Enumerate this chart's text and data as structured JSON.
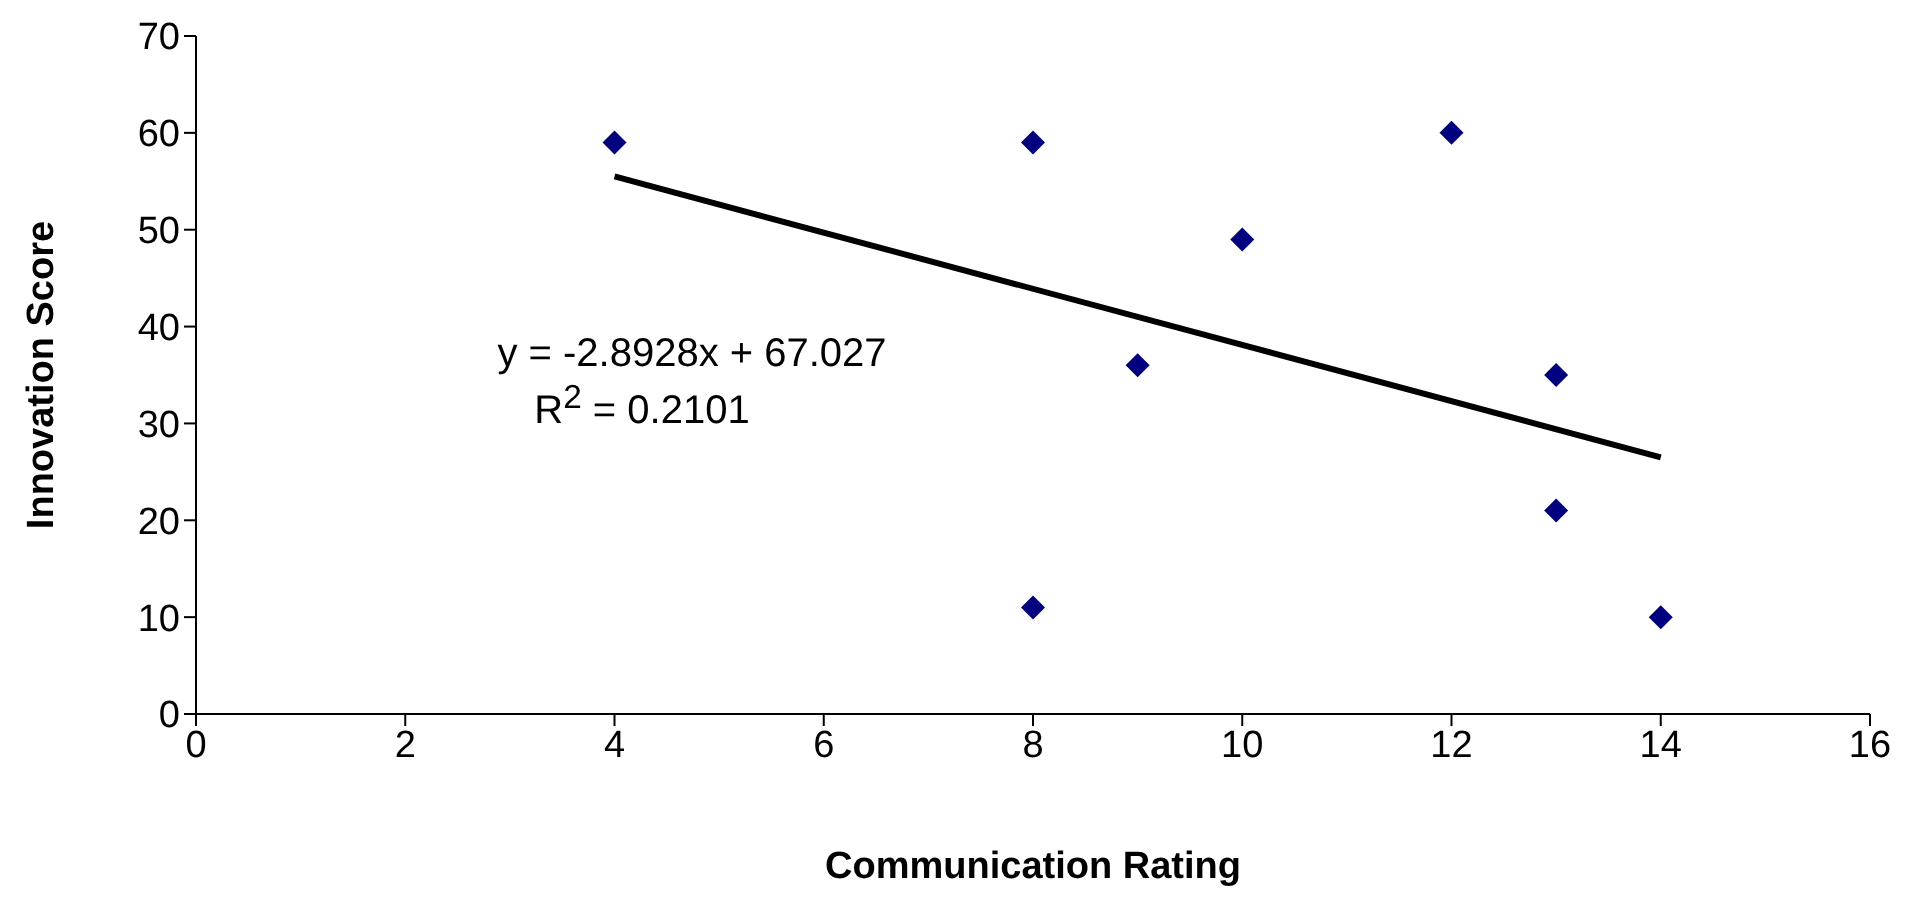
{
  "chart_data": {
    "type": "scatter",
    "xlabel": "Communication Rating",
    "ylabel": "Innovation Score",
    "xlim": [
      0,
      16
    ],
    "xticks": [
      0,
      2,
      4,
      6,
      8,
      10,
      12,
      14,
      16
    ],
    "ylim": [
      0,
      70
    ],
    "yticks": [
      0,
      10,
      20,
      30,
      40,
      50,
      60,
      70
    ],
    "grid": false,
    "legend": false,
    "marker": "diamond",
    "annotations": [
      "y = -2.8928x + 67.027",
      "R$^{2}$ = 0.2101"
    ],
    "series": [
      {
        "color": "#000080",
        "x": [
          4,
          8,
          8,
          9,
          10,
          12,
          13,
          13,
          14
        ],
        "values": [
          59,
          59,
          11,
          36,
          49,
          60,
          35,
          21,
          10
        ]
      },
      {
        "type": "line",
        "color": "#000000",
        "marker": "none",
        "line_style": "solid",
        "x": [
          4,
          14
        ],
        "values": [
          55.5,
          26.5
        ]
      }
    ]
  }
}
